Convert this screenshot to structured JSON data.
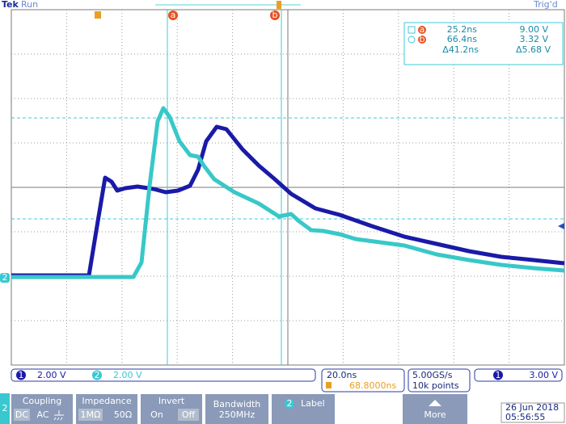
{
  "header": {
    "brand": "Tek",
    "status": "Run",
    "trigger": "Trig'd"
  },
  "cursors": {
    "a": "a",
    "b": "b"
  },
  "readout": {
    "a_time": "25.2ns",
    "a_volt": "9.00 V",
    "b_time": "66.4ns",
    "b_volt": "3.32 V",
    "delta_time": "Δ41.2ns",
    "delta_volt": "Δ5.68 V"
  },
  "channels": [
    {
      "number": "1",
      "scale": "2.00 V"
    },
    {
      "number": "2",
      "scale": "2.00 V"
    }
  ],
  "timebase": {
    "scale": "20.0ns",
    "position": "68.8000ns"
  },
  "acquisition": {
    "rate": "5.00GS/s",
    "length": "10k points"
  },
  "trigger": {
    "source": "1",
    "level": "3.00 V"
  },
  "menu": {
    "channel": "2",
    "coupling": {
      "title": "Coupling",
      "options": [
        "DC",
        "AC"
      ]
    },
    "impedance": {
      "title": "Impedance",
      "options": [
        "1MΩ",
        "50Ω"
      ]
    },
    "invert": {
      "title": "Invert",
      "options": [
        "On",
        "Off"
      ]
    },
    "bandwidth": {
      "title": "Bandwidth",
      "value": "250MHz"
    },
    "label": {
      "title": "Label"
    },
    "more": {
      "title": "More"
    }
  },
  "datetime": {
    "date": "26 Jun 2018",
    "time": "05:56:55"
  }
}
